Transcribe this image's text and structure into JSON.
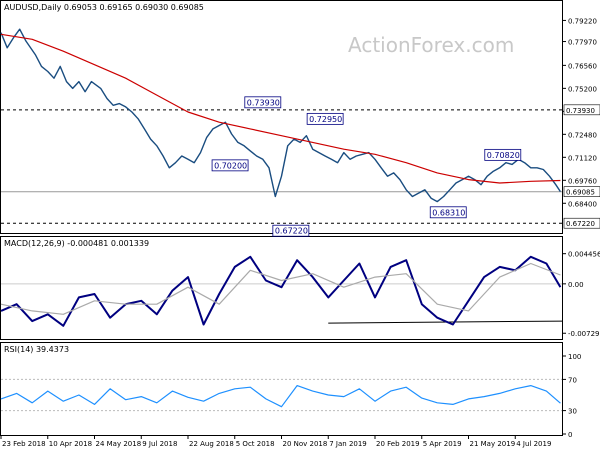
{
  "watermark": "ActionForex.com",
  "chart_data": [
    {
      "type": "candlestick",
      "title": "AUDUSD,Daily  0.69053 0.69165 0.69030 0.69085",
      "ylim": [
        0.667,
        0.796
      ],
      "yticks": [
        0.7922,
        0.7797,
        0.7656,
        0.752,
        0.7384,
        0.7248,
        0.7112,
        0.6976,
        0.684
      ],
      "series": [
        {
          "name": "Close",
          "color": "#1a4d80",
          "x": [
            0,
            4,
            8,
            12,
            16,
            22,
            26,
            30,
            34,
            38,
            42,
            46,
            50,
            54,
            58,
            64,
            68,
            72,
            76,
            80,
            84,
            88,
            92,
            96,
            100,
            104,
            108,
            112,
            116,
            120,
            124,
            128,
            132,
            136,
            140,
            144,
            148,
            152,
            156,
            160,
            164,
            168,
            172,
            176,
            180,
            184,
            188,
            192,
            196,
            200,
            204,
            208,
            212,
            216,
            220,
            224,
            228,
            232,
            236,
            240,
            244,
            248,
            252,
            256,
            260,
            264,
            268,
            272,
            276,
            280,
            284,
            288,
            292,
            296,
            300,
            304,
            308,
            312,
            316,
            320,
            324,
            328,
            332,
            336,
            340,
            344,
            348,
            352,
            356,
            359
          ],
          "y": [
            0.785,
            0.776,
            0.782,
            0.787,
            0.78,
            0.772,
            0.765,
            0.762,
            0.758,
            0.765,
            0.756,
            0.752,
            0.756,
            0.75,
            0.756,
            0.752,
            0.746,
            0.742,
            0.743,
            0.741,
            0.738,
            0.734,
            0.728,
            0.722,
            0.718,
            0.712,
            0.705,
            0.708,
            0.712,
            0.71,
            0.708,
            0.714,
            0.723,
            0.728,
            0.73,
            0.732,
            0.725,
            0.72,
            0.718,
            0.715,
            0.712,
            0.71,
            0.705,
            0.688,
            0.7,
            0.718,
            0.722,
            0.72,
            0.724,
            0.716,
            0.714,
            0.712,
            0.71,
            0.708,
            0.714,
            0.71,
            0.712,
            0.713,
            0.714,
            0.71,
            0.705,
            0.7,
            0.702,
            0.698,
            0.692,
            0.688,
            0.69,
            0.692,
            0.687,
            0.685,
            0.688,
            0.692,
            0.696,
            0.698,
            0.7,
            0.698,
            0.695,
            0.7,
            0.703,
            0.705,
            0.708,
            0.707,
            0.71,
            0.708,
            0.705,
            0.705,
            0.704,
            0.7,
            0.695,
            0.6909
          ]
        },
        {
          "name": "MA",
          "color": "#cc0000",
          "x": [
            0,
            20,
            40,
            60,
            80,
            100,
            120,
            140,
            160,
            180,
            200,
            220,
            240,
            260,
            280,
            300,
            320,
            340,
            359
          ],
          "y": [
            0.784,
            0.781,
            0.774,
            0.766,
            0.758,
            0.748,
            0.738,
            0.732,
            0.728,
            0.724,
            0.72,
            0.716,
            0.713,
            0.708,
            0.702,
            0.698,
            0.696,
            0.697,
            0.6975
          ]
        }
      ],
      "levels": [
        {
          "label": "0.73930",
          "value": 0.7393
        },
        {
          "label": "0.69085",
          "value": 0.69085
        },
        {
          "label": "0.67220",
          "value": 0.6722
        }
      ],
      "annotations": [
        {
          "label": "0.73930",
          "x": 168,
          "value": 0.7393
        },
        {
          "label": "0.70200",
          "x": 147,
          "value": 0.702
        },
        {
          "label": "0.72950",
          "x": 208,
          "value": 0.7295
        },
        {
          "label": "0.67220",
          "x": 186,
          "value": 0.6722
        },
        {
          "label": "0.70820",
          "x": 322,
          "value": 0.7082
        },
        {
          "label": "0.68310",
          "x": 287,
          "value": 0.6831
        }
      ]
    },
    {
      "type": "line",
      "title": "MACD(12,26,9) -0.000481 0.001339",
      "ylim": [
        -0.008,
        0.005
      ],
      "yticks": [
        0.004456,
        0.0,
        -0.007298
      ],
      "series": [
        {
          "name": "MACD",
          "color": "#000080",
          "x": [
            0,
            10,
            20,
            30,
            40,
            50,
            60,
            70,
            80,
            90,
            100,
            110,
            120,
            130,
            140,
            150,
            160,
            170,
            180,
            190,
            200,
            210,
            220,
            230,
            240,
            250,
            260,
            270,
            280,
            290,
            300,
            310,
            320,
            330,
            340,
            350,
            359
          ],
          "y": [
            -0.004,
            -0.003,
            -0.0055,
            -0.0045,
            -0.0062,
            -0.002,
            -0.0015,
            -0.005,
            -0.003,
            -0.0025,
            -0.0045,
            -0.001,
            0.001,
            -0.006,
            -0.0015,
            0.0025,
            0.004,
            0.0005,
            -0.0005,
            0.0035,
            0.001,
            -0.002,
            0.0005,
            0.003,
            -0.002,
            0.0025,
            0.0035,
            -0.003,
            -0.005,
            -0.006,
            -0.0025,
            0.001,
            0.0025,
            0.002,
            0.004,
            0.003,
            -0.00048
          ]
        },
        {
          "name": "Signal",
          "color": "#aaaaaa",
          "x": [
            0,
            20,
            40,
            60,
            80,
            100,
            120,
            140,
            160,
            180,
            200,
            220,
            240,
            260,
            280,
            300,
            320,
            340,
            359
          ],
          "y": [
            -0.003,
            -0.004,
            -0.0045,
            -0.0025,
            -0.003,
            -0.003,
            -0.0005,
            -0.003,
            0.002,
            0.0005,
            0.0015,
            -0.0005,
            0.001,
            0.0015,
            -0.003,
            -0.004,
            0.001,
            0.003,
            0.0013
          ]
        }
      ]
    },
    {
      "type": "line",
      "title": "RSI(14) 39.4373",
      "ylim": [
        0,
        100
      ],
      "yticks": [
        100,
        70,
        30,
        0
      ],
      "series": [
        {
          "name": "RSI",
          "color": "#1e90ff",
          "x": [
            0,
            10,
            20,
            30,
            40,
            50,
            60,
            70,
            80,
            90,
            100,
            110,
            120,
            130,
            140,
            150,
            160,
            170,
            180,
            190,
            200,
            210,
            220,
            230,
            240,
            250,
            260,
            270,
            280,
            290,
            300,
            310,
            320,
            330,
            340,
            350,
            359
          ],
          "y": [
            45,
            52,
            40,
            55,
            42,
            50,
            38,
            58,
            44,
            48,
            40,
            55,
            47,
            42,
            52,
            58,
            60,
            45,
            35,
            62,
            55,
            50,
            48,
            58,
            42,
            55,
            60,
            46,
            40,
            38,
            45,
            48,
            52,
            58,
            62,
            55,
            39.44
          ]
        }
      ]
    }
  ],
  "x_axis": {
    "labels": [
      "23 Feb 2018",
      "10 Apr 2018",
      "24 May 2018",
      "9 Jul 2018",
      "22 Aug 2018",
      "5 Oct 2018",
      "20 Nov 2018",
      "7 Jan 2019",
      "20 Feb 2019",
      "5 Apr 2019",
      "21 May 2019",
      "4 Jul 2019"
    ],
    "positions": [
      0,
      30,
      60,
      90,
      120,
      150,
      180,
      210,
      240,
      270,
      300,
      330
    ],
    "range": [
      0,
      360
    ]
  }
}
